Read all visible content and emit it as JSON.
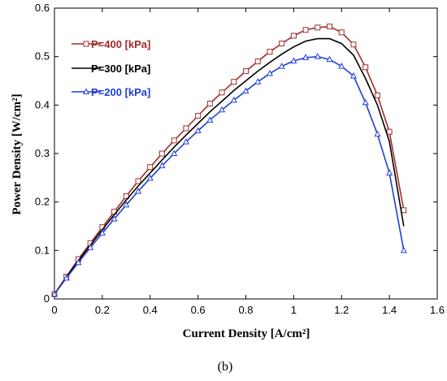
{
  "chart_data": {
    "type": "line",
    "xlabel": "Current Density [A/cm²]",
    "ylabel": "Power Density [W/cm²]",
    "xlim": [
      0,
      1.6
    ],
    "ylim": [
      0,
      0.6
    ],
    "xticks": [
      "0",
      "0.2",
      "0.4",
      "0.6",
      "0.8",
      "1",
      "1.2",
      "1.4",
      "1.6"
    ],
    "yticks": [
      "0",
      "0.1",
      "0.2",
      "0.3",
      "0.4",
      "0.5",
      "0.6"
    ],
    "grid": false,
    "legend_position": "top-left",
    "caption": "(b)",
    "series": [
      {
        "name": "P=400 [kPa]",
        "color": "#a52a2a",
        "marker": "square",
        "x": [
          0,
          0.05,
          0.1,
          0.15,
          0.2,
          0.25,
          0.3,
          0.35,
          0.4,
          0.45,
          0.5,
          0.55,
          0.6,
          0.65,
          0.7,
          0.75,
          0.8,
          0.85,
          0.9,
          0.95,
          1.0,
          1.05,
          1.1,
          1.15,
          1.2,
          1.25,
          1.3,
          1.35,
          1.4,
          1.46
        ],
        "y": [
          0.01,
          0.046,
          0.082,
          0.115,
          0.148,
          0.18,
          0.212,
          0.243,
          0.272,
          0.3,
          0.327,
          0.352,
          0.378,
          0.403,
          0.426,
          0.448,
          0.47,
          0.49,
          0.51,
          0.527,
          0.543,
          0.555,
          0.56,
          0.562,
          0.55,
          0.525,
          0.478,
          0.42,
          0.345,
          0.183
        ]
      },
      {
        "name": "P=300 [kPa]",
        "color": "#000000",
        "marker": "none",
        "x": [
          0,
          0.05,
          0.1,
          0.15,
          0.2,
          0.25,
          0.3,
          0.35,
          0.4,
          0.45,
          0.5,
          0.55,
          0.6,
          0.65,
          0.7,
          0.75,
          0.8,
          0.85,
          0.9,
          0.95,
          1.0,
          1.05,
          1.1,
          1.15,
          1.2,
          1.25,
          1.3,
          1.35,
          1.4,
          1.46
        ],
        "y": [
          0.01,
          0.045,
          0.079,
          0.111,
          0.143,
          0.174,
          0.204,
          0.233,
          0.26,
          0.287,
          0.313,
          0.338,
          0.362,
          0.386,
          0.408,
          0.43,
          0.45,
          0.47,
          0.488,
          0.505,
          0.52,
          0.532,
          0.537,
          0.537,
          0.527,
          0.503,
          0.455,
          0.4,
          0.325,
          0.15
        ]
      },
      {
        "name": "P=200 [kPa]",
        "color": "#1f3fd6",
        "marker": "triangle",
        "x": [
          0,
          0.05,
          0.1,
          0.15,
          0.2,
          0.25,
          0.3,
          0.35,
          0.4,
          0.45,
          0.5,
          0.55,
          0.6,
          0.65,
          0.7,
          0.75,
          0.8,
          0.85,
          0.9,
          0.95,
          1.0,
          1.05,
          1.1,
          1.15,
          1.2,
          1.25,
          1.3,
          1.35,
          1.4,
          1.46
        ],
        "y": [
          0.01,
          0.043,
          0.075,
          0.106,
          0.136,
          0.165,
          0.194,
          0.222,
          0.249,
          0.275,
          0.3,
          0.324,
          0.347,
          0.369,
          0.39,
          0.41,
          0.429,
          0.448,
          0.465,
          0.48,
          0.491,
          0.498,
          0.5,
          0.494,
          0.48,
          0.46,
          0.405,
          0.34,
          0.26,
          0.1
        ]
      }
    ]
  }
}
